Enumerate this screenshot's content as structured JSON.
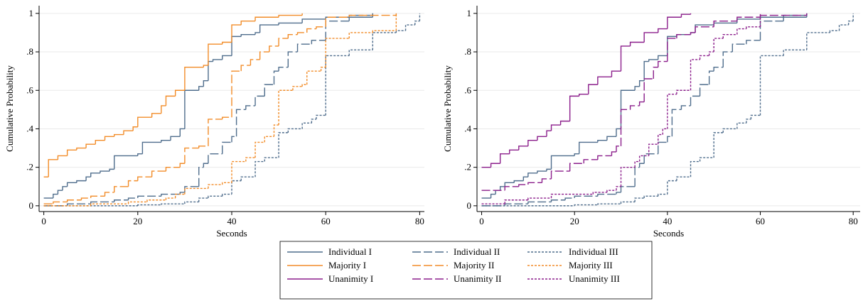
{
  "chart_data": [
    {
      "type": "step",
      "x_label": "Seconds",
      "y_label": "Cumulative Probability",
      "xlim": [
        -1,
        81
      ],
      "ylim": [
        -0.03,
        1.04
      ],
      "xticks": [
        0,
        20,
        40,
        60,
        80
      ],
      "yticks": [
        0,
        {
          "value": 0.2,
          "label": ".2"
        },
        {
          "value": 0.4,
          "label": ".4"
        },
        {
          "value": 0.6,
          "label": ".6"
        },
        {
          "value": 0.8,
          "label": ".8"
        },
        1
      ],
      "grid": true,
      "series": [
        {
          "name": "Individual I",
          "color": "#4f6d8c",
          "dash": "solid",
          "x": [
            0,
            2,
            3,
            4,
            5,
            7,
            9,
            10,
            12,
            14,
            15,
            20,
            21,
            25,
            27,
            29,
            30,
            33,
            34,
            35,
            36,
            38,
            40,
            42,
            45,
            46,
            50,
            55,
            60,
            70
          ],
          "values": [
            0.04,
            0.06,
            0.08,
            0.1,
            0.12,
            0.13,
            0.15,
            0.17,
            0.18,
            0.19,
            0.26,
            0.27,
            0.33,
            0.34,
            0.36,
            0.4,
            0.6,
            0.62,
            0.65,
            0.75,
            0.76,
            0.78,
            0.88,
            0.89,
            0.9,
            0.94,
            0.95,
            0.97,
            0.98,
            1
          ]
        },
        {
          "name": "Individual II",
          "color": "#4f6d8c",
          "dash": "long",
          "x": [
            0,
            5,
            10,
            15,
            18,
            20,
            25,
            29,
            30,
            33,
            34,
            35,
            38,
            40,
            41,
            43,
            45,
            47,
            49,
            50,
            52,
            54,
            57,
            60,
            65,
            70
          ],
          "values": [
            0,
            0.01,
            0.02,
            0.03,
            0.04,
            0.05,
            0.06,
            0.07,
            0.1,
            0.2,
            0.22,
            0.27,
            0.33,
            0.36,
            0.5,
            0.52,
            0.57,
            0.63,
            0.7,
            0.72,
            0.8,
            0.84,
            0.86,
            0.96,
            0.99,
            1
          ]
        },
        {
          "name": "Individual III",
          "color": "#4f6d8c",
          "dash": "short",
          "x": [
            0,
            20,
            25,
            30,
            33,
            35,
            38,
            40,
            42,
            45,
            47,
            50,
            52,
            55,
            57,
            58,
            60,
            65,
            70,
            75,
            77,
            79,
            80
          ],
          "values": [
            0,
            0.005,
            0.01,
            0.02,
            0.04,
            0.05,
            0.06,
            0.13,
            0.15,
            0.23,
            0.25,
            0.38,
            0.4,
            0.43,
            0.45,
            0.47,
            0.78,
            0.81,
            0.9,
            0.91,
            0.94,
            0.96,
            1
          ]
        },
        {
          "name": "Majority I",
          "color": "#f28c28",
          "dash": "solid",
          "x": [
            0,
            1,
            3,
            5,
            7,
            9,
            11,
            13,
            15,
            17,
            19,
            20,
            23,
            25,
            26,
            28,
            30,
            34,
            35,
            38,
            40,
            42,
            45,
            50,
            55
          ],
          "values": [
            0.15,
            0.24,
            0.26,
            0.29,
            0.3,
            0.32,
            0.34,
            0.36,
            0.37,
            0.39,
            0.41,
            0.46,
            0.48,
            0.52,
            0.57,
            0.6,
            0.72,
            0.73,
            0.84,
            0.85,
            0.94,
            0.96,
            0.98,
            0.99,
            1
          ]
        },
        {
          "name": "Majority II",
          "color": "#f28c28",
          "dash": "long",
          "x": [
            0,
            2,
            5,
            8,
            10,
            13,
            15,
            18,
            20,
            23,
            26,
            29,
            30,
            33,
            35,
            38,
            40,
            42,
            44,
            46,
            48,
            50,
            52,
            54,
            56,
            58,
            60,
            65,
            75
          ],
          "values": [
            0.01,
            0.02,
            0.03,
            0.04,
            0.05,
            0.07,
            0.1,
            0.13,
            0.15,
            0.18,
            0.2,
            0.22,
            0.3,
            0.31,
            0.45,
            0.46,
            0.7,
            0.73,
            0.76,
            0.8,
            0.83,
            0.87,
            0.89,
            0.9,
            0.92,
            0.93,
            0.98,
            0.99,
            1
          ]
        },
        {
          "name": "Majority III",
          "color": "#f28c28",
          "dash": "short",
          "x": [
            0,
            10,
            18,
            22,
            26,
            28,
            30,
            35,
            38,
            40,
            43,
            45,
            47,
            49,
            50,
            53,
            55,
            56,
            59,
            60,
            65,
            70,
            75
          ],
          "values": [
            0,
            0.01,
            0.02,
            0.03,
            0.04,
            0.06,
            0.09,
            0.11,
            0.12,
            0.23,
            0.25,
            0.33,
            0.36,
            0.42,
            0.6,
            0.62,
            0.63,
            0.7,
            0.72,
            0.87,
            0.9,
            0.91,
            1
          ]
        }
      ]
    },
    {
      "type": "step",
      "x_label": "Seconds",
      "y_label": "Cumulative Probability",
      "xlim": [
        -1,
        81.5
      ],
      "ylim": [
        -0.03,
        1.04
      ],
      "xticks": [
        0,
        20,
        40,
        60,
        80
      ],
      "yticks": [
        0,
        {
          "value": 0.2,
          "label": ".2"
        },
        {
          "value": 0.4,
          "label": ".4"
        },
        {
          "value": 0.6,
          "label": ".6"
        },
        {
          "value": 0.8,
          "label": ".8"
        },
        1
      ],
      "grid": true,
      "series": [
        {
          "name": "Individual I",
          "color": "#4f6d8c",
          "dash": "solid",
          "x": [
            0,
            2,
            3,
            4,
            5,
            7,
            9,
            10,
            12,
            14,
            15,
            20,
            21,
            25,
            27,
            29,
            30,
            33,
            34,
            35,
            36,
            38,
            40,
            42,
            45,
            46,
            50,
            55,
            60,
            70
          ],
          "values": [
            0.04,
            0.06,
            0.08,
            0.1,
            0.12,
            0.13,
            0.15,
            0.17,
            0.18,
            0.19,
            0.26,
            0.27,
            0.33,
            0.34,
            0.36,
            0.4,
            0.6,
            0.62,
            0.65,
            0.75,
            0.76,
            0.78,
            0.88,
            0.89,
            0.9,
            0.94,
            0.95,
            0.97,
            0.98,
            1
          ]
        },
        {
          "name": "Individual II",
          "color": "#4f6d8c",
          "dash": "long",
          "x": [
            0,
            5,
            10,
            15,
            18,
            20,
            25,
            29,
            30,
            33,
            34,
            35,
            38,
            40,
            41,
            43,
            45,
            47,
            49,
            50,
            52,
            54,
            57,
            60,
            65,
            70
          ],
          "values": [
            0,
            0.01,
            0.02,
            0.03,
            0.04,
            0.05,
            0.06,
            0.07,
            0.1,
            0.2,
            0.22,
            0.27,
            0.33,
            0.36,
            0.5,
            0.52,
            0.57,
            0.63,
            0.7,
            0.72,
            0.8,
            0.84,
            0.86,
            0.96,
            0.99,
            1
          ]
        },
        {
          "name": "Individual III",
          "color": "#4f6d8c",
          "dash": "short",
          "x": [
            0,
            20,
            25,
            30,
            33,
            35,
            38,
            40,
            42,
            45,
            47,
            50,
            52,
            55,
            57,
            58,
            60,
            65,
            70,
            75,
            77,
            79,
            80
          ],
          "values": [
            0,
            0.005,
            0.01,
            0.02,
            0.04,
            0.05,
            0.06,
            0.13,
            0.15,
            0.23,
            0.25,
            0.38,
            0.4,
            0.43,
            0.45,
            0.47,
            0.78,
            0.81,
            0.9,
            0.91,
            0.94,
            0.96,
            1
          ]
        },
        {
          "name": "Unanimity I",
          "color": "#8b1e8b",
          "dash": "solid",
          "x": [
            0,
            2,
            4,
            6,
            8,
            10,
            12,
            14,
            15,
            17,
            19,
            21,
            23,
            25,
            28,
            30,
            32,
            35,
            38,
            40,
            43,
            45
          ],
          "values": [
            0.2,
            0.22,
            0.27,
            0.29,
            0.31,
            0.34,
            0.36,
            0.39,
            0.42,
            0.44,
            0.57,
            0.58,
            0.63,
            0.67,
            0.7,
            0.83,
            0.85,
            0.9,
            0.92,
            0.98,
            0.995,
            1
          ]
        },
        {
          "name": "Unanimity II",
          "color": "#8b1e8b",
          "dash": "long",
          "x": [
            0,
            5,
            8,
            10,
            13,
            15,
            19,
            22,
            25,
            28,
            29,
            30,
            32,
            34,
            35,
            37,
            38,
            40,
            42,
            45,
            46,
            50,
            55,
            60,
            70
          ],
          "values": [
            0.08,
            0.1,
            0.11,
            0.12,
            0.14,
            0.18,
            0.22,
            0.24,
            0.26,
            0.28,
            0.31,
            0.5,
            0.52,
            0.54,
            0.66,
            0.72,
            0.75,
            0.87,
            0.89,
            0.9,
            0.93,
            0.96,
            0.98,
            0.99,
            1
          ]
        },
        {
          "name": "Unanimity III",
          "color": "#8b1e8b",
          "dash": "short",
          "x": [
            0,
            5,
            10,
            15,
            24,
            27,
            29,
            30,
            33,
            34,
            36,
            38,
            39,
            40,
            42,
            45,
            47,
            49,
            50,
            52,
            55,
            57,
            60
          ],
          "values": [
            0.01,
            0.03,
            0.04,
            0.06,
            0.07,
            0.08,
            0.1,
            0.2,
            0.23,
            0.26,
            0.32,
            0.37,
            0.4,
            0.58,
            0.6,
            0.76,
            0.78,
            0.8,
            0.87,
            0.89,
            0.92,
            0.93,
            1
          ]
        }
      ]
    }
  ]
}
